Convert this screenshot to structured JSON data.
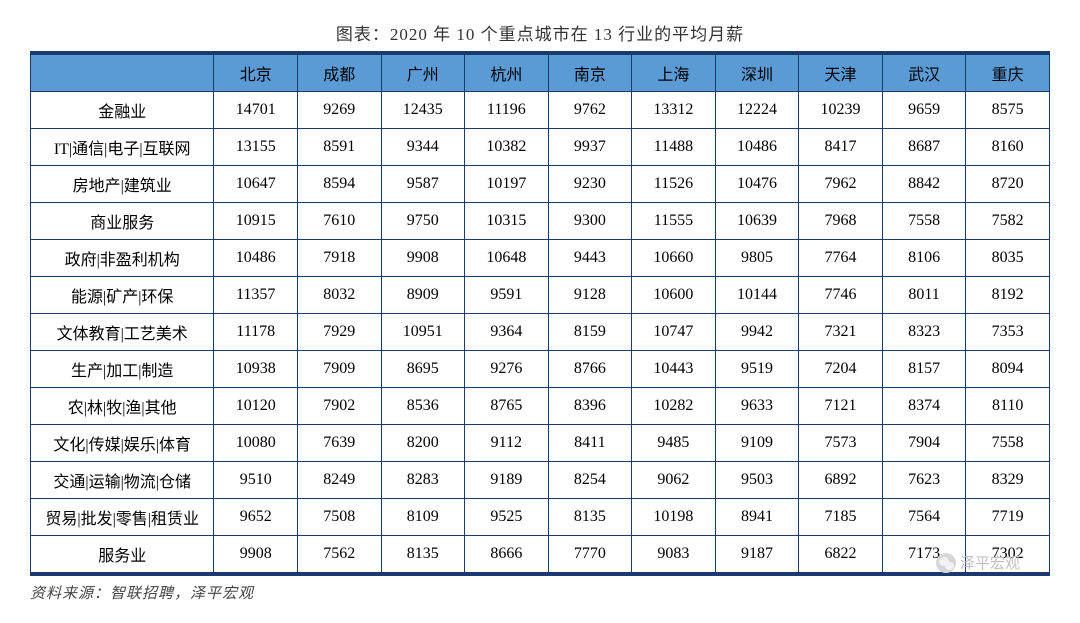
{
  "title": "图表：2020 年 10 个重点城市在 13 行业的平均月薪",
  "source": "资料来源：智联招聘，泽平宏观",
  "watermark": "泽平宏观",
  "table": {
    "header_bg": "#5b9bd5",
    "border_color": "#1a3a6e",
    "columns": [
      "",
      "北京",
      "成都",
      "广州",
      "杭州",
      "南京",
      "上海",
      "深圳",
      "天津",
      "武汉",
      "重庆"
    ],
    "rows": [
      [
        "金融业",
        14701,
        9269,
        12435,
        11196,
        9762,
        13312,
        12224,
        10239,
        9659,
        8575
      ],
      [
        "IT|通信|电子|互联网",
        13155,
        8591,
        9344,
        10382,
        9937,
        11488,
        10486,
        8417,
        8687,
        8160
      ],
      [
        "房地产|建筑业",
        10647,
        8594,
        9587,
        10197,
        9230,
        11526,
        10476,
        7962,
        8842,
        8720
      ],
      [
        "商业服务",
        10915,
        7610,
        9750,
        10315,
        9300,
        11555,
        10639,
        7968,
        7558,
        7582
      ],
      [
        "政府|非盈利机构",
        10486,
        7918,
        9908,
        10648,
        9443,
        10660,
        9805,
        7764,
        8106,
        8035
      ],
      [
        "能源|矿产|环保",
        11357,
        8032,
        8909,
        9591,
        9128,
        10600,
        10144,
        7746,
        8011,
        8192
      ],
      [
        "文体教育|工艺美术",
        11178,
        7929,
        10951,
        9364,
        8159,
        10747,
        9942,
        7321,
        8323,
        7353
      ],
      [
        "生产|加工|制造",
        10938,
        7909,
        8695,
        9276,
        8766,
        10443,
        9519,
        7204,
        8157,
        8094
      ],
      [
        "农|林|牧|渔|其他",
        10120,
        7902,
        8536,
        8765,
        8396,
        10282,
        9633,
        7121,
        8374,
        8110
      ],
      [
        "文化|传媒|娱乐|体育",
        10080,
        7639,
        8200,
        9112,
        8411,
        9485,
        9109,
        7573,
        7904,
        7558
      ],
      [
        "交通|运输|物流|仓储",
        9510,
        8249,
        8283,
        9189,
        8254,
        9062,
        9503,
        6892,
        7623,
        8329
      ],
      [
        "贸易|批发|零售|租赁业",
        9652,
        7508,
        8109,
        9525,
        8135,
        10198,
        8941,
        7185,
        7564,
        7719
      ],
      [
        "服务业",
        9908,
        7562,
        8135,
        8666,
        7770,
        9083,
        9187,
        6822,
        7173,
        7302
      ]
    ]
  }
}
